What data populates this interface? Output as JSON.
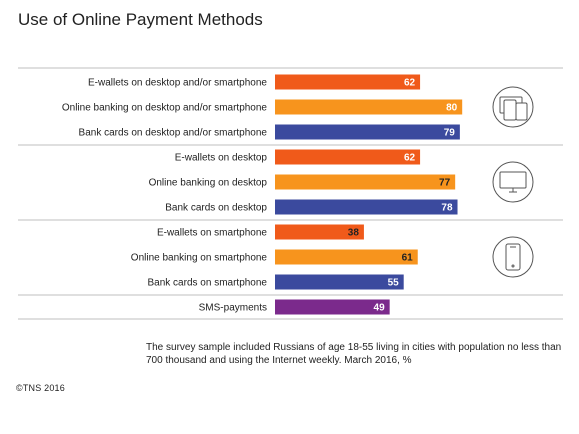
{
  "chart_data": {
    "type": "bar",
    "title": "Use of Online Payment Methods",
    "categories": [
      "E-wallets on desktop and/or smartphone",
      "Online banking on desktop and/or smartphone",
      "Bank cards on desktop and/or smartphone",
      "E-wallets on desktop",
      "Online banking on desktop",
      "Bank cards on desktop",
      "E-wallets on smartphone",
      "Online banking on smartphone",
      "Bank cards on smartphone",
      "SMS-payments"
    ],
    "values": [
      62,
      80,
      79,
      62,
      77,
      78,
      38,
      61,
      55,
      49
    ],
    "bar_colors": [
      "#f05a1a",
      "#f7941d",
      "#3b4a9e",
      "#f05a1a",
      "#f7941d",
      "#3b4a9e",
      "#f05a1a",
      "#f7941d",
      "#3b4a9e",
      "#7b2a8c"
    ],
    "value_label_colors": [
      "#ffffff",
      "#ffffff",
      "#ffffff",
      "#ffffff",
      "#222222",
      "#ffffff",
      "#222222",
      "#222222",
      "#ffffff",
      "#ffffff"
    ],
    "groups": [
      {
        "icon": "desktop-and-smartphone-icon",
        "rows": [
          0,
          1,
          2
        ]
      },
      {
        "icon": "desktop-icon",
        "rows": [
          3,
          4,
          5
        ]
      },
      {
        "icon": "smartphone-icon",
        "rows": [
          6,
          7,
          8
        ]
      },
      {
        "icon": "",
        "rows": [
          9
        ]
      }
    ],
    "xlim": [
      0,
      100
    ],
    "grid": false,
    "legend": "none"
  },
  "footnote": "The survey sample included Russians of age 18-55 living in cities with population no less than 700 thousand and using the Internet weekly. March 2016, %",
  "copyright": "©TNS 2016"
}
